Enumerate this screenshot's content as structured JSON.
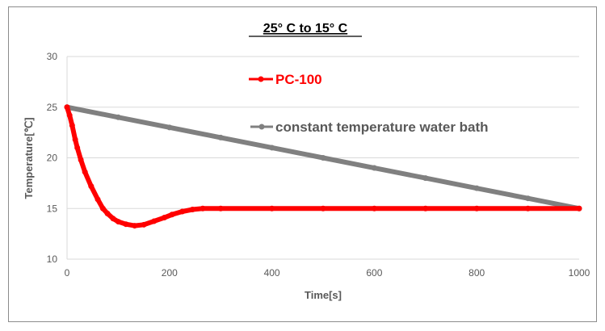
{
  "chart_data": {
    "type": "line",
    "title": "25° C to 15° C",
    "xlabel": "Time[s]",
    "ylabel": "Temperature[℃]",
    "xlim": [
      0,
      1000
    ],
    "ylim": [
      10,
      30
    ],
    "xticks": [
      0,
      200,
      400,
      600,
      800,
      1000
    ],
    "yticks": [
      10,
      15,
      20,
      25,
      30
    ],
    "grid": true,
    "legend_placement": "inside-top",
    "series": [
      {
        "name": "PC-100",
        "color": "#ff0000",
        "x": [
          0,
          5,
          10,
          16,
          20,
          27,
          35,
          47,
          60,
          70,
          79,
          90,
          100,
          115,
          132,
          150,
          170,
          190,
          205,
          225,
          245,
          265,
          300,
          400,
          500,
          600,
          700,
          800,
          900,
          1000
        ],
        "y": [
          25,
          24.2,
          23.2,
          21.8,
          21,
          19.8,
          18.6,
          17.2,
          15.9,
          15.0,
          14.5,
          14.0,
          13.7,
          13.45,
          13.3,
          13.4,
          13.75,
          14.1,
          14.4,
          14.7,
          14.9,
          15.0,
          15,
          15,
          15,
          15,
          15,
          15,
          15,
          15
        ]
      },
      {
        "name": "constant temperature water bath",
        "color": "#808080",
        "x": [
          0,
          100,
          200,
          300,
          400,
          500,
          600,
          700,
          800,
          900,
          1000
        ],
        "y": [
          25,
          24,
          23,
          22,
          21,
          20,
          19,
          18,
          17,
          16,
          15
        ]
      }
    ]
  }
}
